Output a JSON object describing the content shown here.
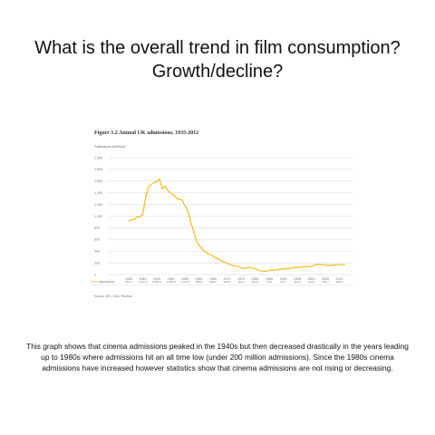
{
  "slide": {
    "title_line1": "What is the overall trend in film consumption?",
    "title_line2": "Growth/decline?",
    "caption": "This graph shows that cinema admissions peaked in the 1940s but then decreased drastically in the years leading up to 1980s where admissions hit an all time low (under 200 million admissions). Since the 1980s cinema admissions have increased however statistics show that cinema admissions are not rising or decreasing."
  },
  "figure": {
    "title": "Figure 1.2 Annual UK admissions, 1935-2012",
    "unit_label": "Admissions (million)",
    "source": "Source: BFI, CAA, Rentrak",
    "legend_label": "Admissions"
  },
  "colors": {
    "line": "#f2c23a",
    "grid": "#d6d6d6",
    "text": "#777777"
  },
  "chart_data": {
    "type": "line",
    "title": "Figure 1.2 Annual UK admissions, 1935-2012",
    "ylabel": "Admissions (million)",
    "ylim": [
      0,
      2000
    ],
    "yticks": [
      0,
      200,
      400,
      600,
      800,
      1000,
      1200,
      1400,
      1600,
      1800,
      2000
    ],
    "ytick_labels": [
      "0",
      "200",
      "400",
      "600",
      "800",
      "1,000",
      "1,200",
      "1,400",
      "1,600",
      "1,800",
      "2,000"
    ],
    "xlim": [
      1935,
      2012
    ],
    "xticks": [
      1935,
      1940,
      1945,
      1950,
      1955,
      1960,
      1965,
      1970,
      1975,
      1980,
      1985,
      1990,
      1995,
      2000,
      2005,
      2010
    ],
    "table_values": [
      "912.3",
      "1,027.0",
      "1,585.0",
      "1,395.8",
      "1,181.8",
      "500.8",
      "326.6",
      "193.0",
      "116.3",
      "101.0",
      "72.0",
      "97.4",
      "114.6",
      "142.5",
      "164.7",
      "169.2"
    ],
    "grid": true,
    "legend": "bottom-left",
    "series": [
      {
        "name": "Admissions",
        "x": [
          1935,
          1936,
          1937,
          1938,
          1939,
          1940,
          1941,
          1942,
          1943,
          1944,
          1945,
          1946,
          1947,
          1948,
          1949,
          1950,
          1951,
          1952,
          1953,
          1954,
          1955,
          1956,
          1957,
          1958,
          1959,
          1960,
          1962,
          1964,
          1966,
          1968,
          1970,
          1972,
          1974,
          1976,
          1978,
          1980,
          1982,
          1984,
          1985,
          1986,
          1988,
          1990,
          1992,
          1994,
          1996,
          1998,
          2000,
          2002,
          2004,
          2006,
          2008,
          2010,
          2012
        ],
        "y": [
          912,
          940,
          946,
          987,
          990,
          1027,
          1309,
          1494,
          1541,
          1575,
          1585,
          1635,
          1462,
          1514,
          1430,
          1396,
          1365,
          1312,
          1285,
          1276,
          1182,
          1101,
          915,
          755,
          600,
          501,
          395,
          343,
          289,
          237,
          193,
          157,
          138,
          104,
          126,
          101,
          64,
          54,
          72,
          75,
          84,
          97,
          103,
          124,
          123,
          136,
          142,
          176,
          171,
          157,
          164,
          169,
          172
        ]
      }
    ]
  }
}
